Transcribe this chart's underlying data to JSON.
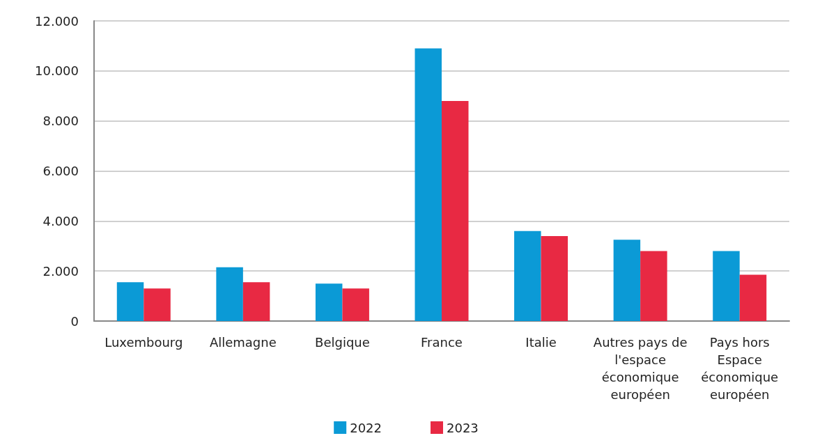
{
  "chart_data": {
    "type": "bar",
    "categories": [
      "Luxembourg",
      "Allemagne",
      "Belgique",
      "France",
      "Italie",
      "Autres pays de l'espace économique européen",
      "Pays hors Espace économique européen"
    ],
    "series": [
      {
        "name": "2022",
        "color": "#0b9ad6",
        "values": [
          1550,
          2150,
          1500,
          10900,
          3600,
          3250,
          2800
        ]
      },
      {
        "name": "2023",
        "color": "#e82943",
        "values": [
          1300,
          1550,
          1300,
          8800,
          3400,
          2800,
          1850
        ]
      }
    ],
    "ylim": [
      0,
      12000
    ],
    "yticks": [
      0,
      {
        "value": 2000,
        "label": "2.000"
      },
      {
        "value": 4000,
        "label": "4.000"
      },
      {
        "value": 6000,
        "label": "6.000"
      },
      {
        "value": 8000,
        "label": "8.000"
      },
      {
        "value": 10000,
        "label": "10.000"
      },
      {
        "value": 12000,
        "label": "12.000"
      }
    ],
    "grid": "y",
    "legend": "bottom"
  }
}
